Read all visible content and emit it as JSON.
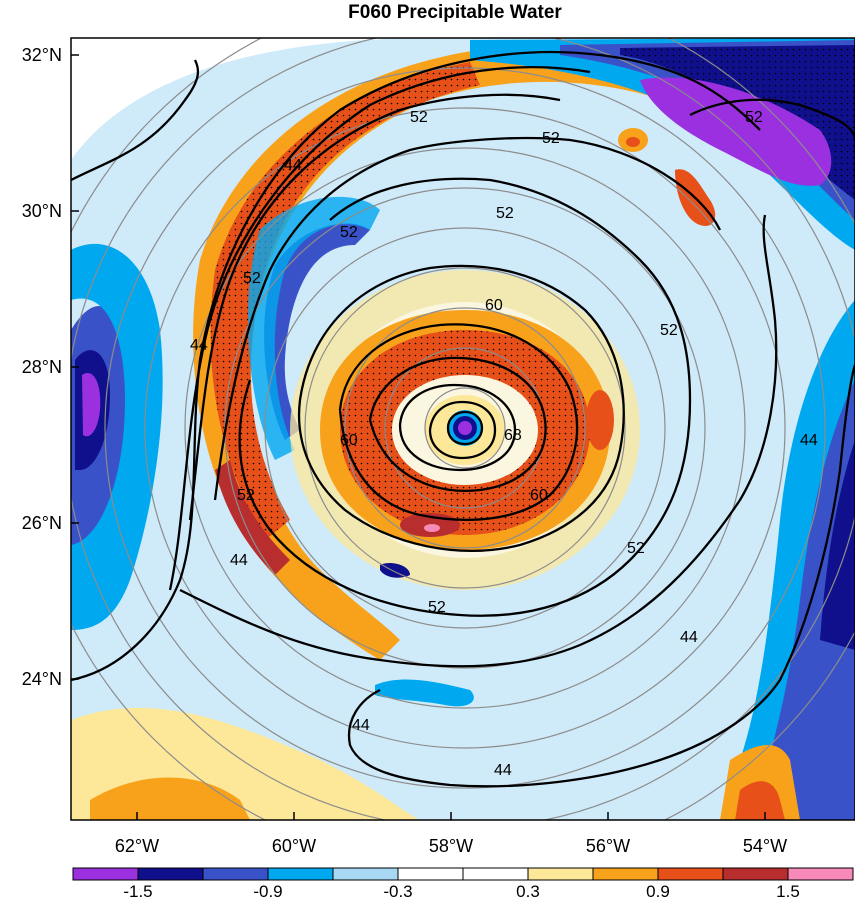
{
  "title": "F060 Precipitable Water",
  "lat_labels": [
    "32°N",
    "30°N",
    "28°N",
    "26°N",
    "24°N"
  ],
  "lon_labels": [
    "62°W",
    "60°W",
    "58°W",
    "56°W",
    "54°W"
  ],
  "colorbar": {
    "colors": [
      "#9b30e0",
      "#10108c",
      "#3a52c8",
      "#00a8f0",
      "#a8d8f4",
      "#ffffff",
      "#ffffff",
      "#fde89a",
      "#f8a21c",
      "#e8501a",
      "#b82d2d",
      "#f78ab8"
    ],
    "labels": [
      "-1.5",
      "-0.9",
      "-0.3",
      "0.3",
      "0.9",
      "1.5"
    ]
  },
  "contour_labels": [
    "52",
    "52",
    "52",
    "44",
    "52",
    "52",
    "60",
    "52",
    "44",
    "60",
    "68",
    "60",
    "52",
    "44",
    "52",
    "52",
    "44",
    "44",
    "44"
  ],
  "chart_data": {
    "type": "map",
    "title": "F060 Precipitable Water",
    "region": {
      "lon_range": [
        "62°W",
        "54°W"
      ],
      "lat_range": [
        "24°N",
        "32°N"
      ]
    },
    "storm_center": {
      "lon": "58°W",
      "lat": "27.2°N"
    },
    "contour_levels": [
      44,
      52,
      60,
      68
    ],
    "colorbar_ticks": [
      -1.5,
      -0.9,
      -0.3,
      0.3,
      0.9,
      1.5
    ],
    "stippling": "significant regions (dotted)",
    "grid": true
  }
}
